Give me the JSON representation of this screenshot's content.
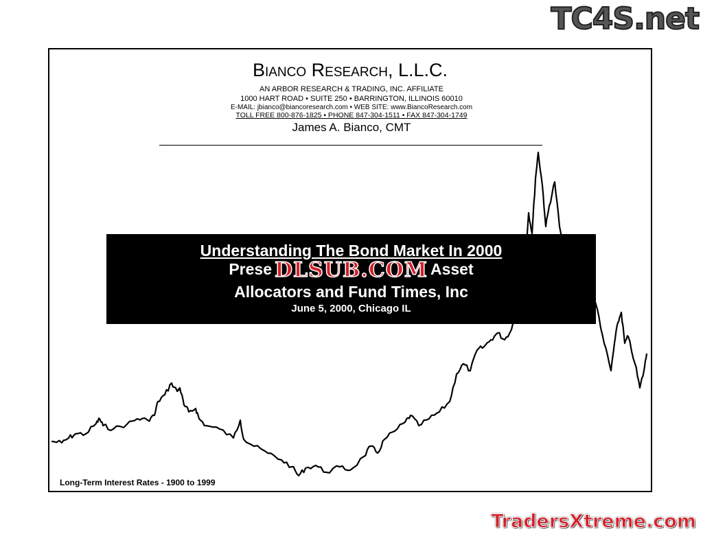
{
  "logos": {
    "top_right": "TC4S.net",
    "bottom_right": "TradersXtreme.com",
    "overlay": "DLSUB.COM"
  },
  "header": {
    "firm_first_initial": "B",
    "firm_first_rest": "IANCO",
    "firm_second_initial": "R",
    "firm_second_rest": "ESEARCH",
    "firm_suffix": ", L.L.C.",
    "affiliate": "AN ARBOR RESEARCH & TRADING, INC. AFFILIATE",
    "address": "1000 HART ROAD • SUITE 250 • BARRINGTON, ILLINOIS 60010",
    "contact": "E-MAIL:  jbianco@biancoresearch.com  •  WEB SITE:  www.BiancoResearch.com",
    "phones": "TOLL FREE  800-876-1825  •  PHONE  847-304-1511  •  FAX  847-304-1749",
    "author": "James A. Bianco, CMT"
  },
  "banner": {
    "title": "Understanding The Bond Market In 2000",
    "line2_start": "Prese",
    "line2_end": "Asset",
    "line3": "Allocators and Fund Times, Inc",
    "date": "June 5, 2000, Chicago IL"
  },
  "chart": {
    "caption": "Long-Term Interest Rates - 1900 to 1999",
    "line_color": "#000000"
  }
}
